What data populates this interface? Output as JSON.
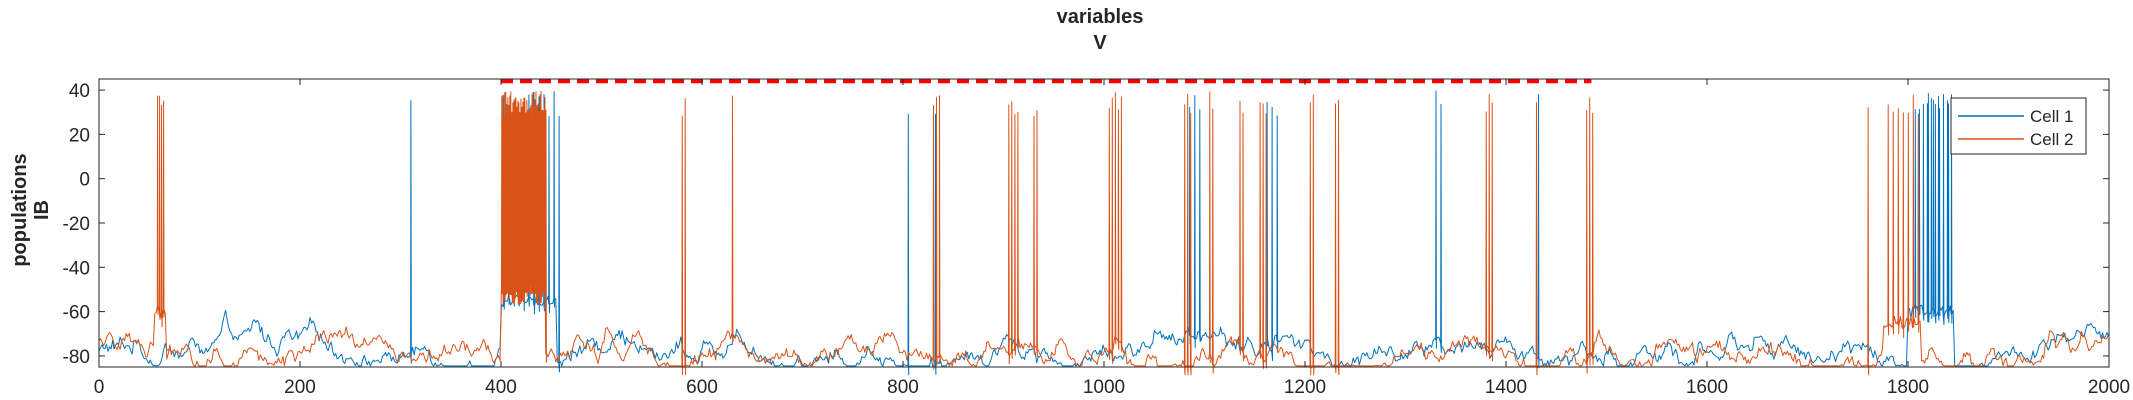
{
  "chart_data": {
    "type": "line",
    "title": [
      "variables",
      "V"
    ],
    "ylabel": [
      "populations",
      "IB"
    ],
    "xlabel": "",
    "xlim": [
      0,
      2000
    ],
    "ylim": [
      -85,
      45
    ],
    "xticks": [
      0,
      200,
      400,
      600,
      800,
      1000,
      1200,
      1400,
      1600,
      1800,
      2000
    ],
    "yticks": [
      -80,
      -60,
      -40,
      -20,
      0,
      20,
      40
    ],
    "grid": false,
    "legend": "top-right",
    "series": [
      {
        "name": "Cell 1",
        "color": "#0072BD",
        "baseline": -78,
        "spike_peak": 40,
        "spikes": [
          310,
          805,
          832,
          1085,
          1090,
          1095,
          1162,
          1167,
          1172,
          1330,
          1335,
          1432,
          1810,
          1815,
          1820,
          1825,
          1830,
          1835,
          1840
        ],
        "bursts": [
          [
            400,
            460,
            12
          ],
          [
            1805,
            1845,
            10
          ]
        ],
        "plateaus": [
          [
            400,
            455,
            -55
          ],
          [
            1800,
            1845,
            -60
          ]
        ]
      },
      {
        "name": "Cell 2",
        "color": "#D95319",
        "baseline": -79,
        "spike_peak": 40,
        "spikes": [
          58,
          60,
          62,
          64,
          580,
          583,
          630,
          830,
          833,
          836,
          905,
          908,
          911,
          914,
          930,
          933,
          1005,
          1008,
          1011,
          1014,
          1017,
          1080,
          1083,
          1086,
          1105,
          1108,
          1135,
          1138,
          1155,
          1158,
          1161,
          1205,
          1208,
          1230,
          1233,
          1380,
          1383,
          1386,
          1430,
          1480,
          1483,
          1486,
          1760,
          1780,
          1785,
          1790,
          1795,
          1800,
          1805,
          1810
        ],
        "bursts": [
          [
            400,
            445,
            45
          ]
        ],
        "plateaus": [
          [
            400,
            445,
            -50
          ],
          [
            55,
            66,
            -60
          ],
          [
            1775,
            1812,
            -65
          ]
        ]
      }
    ],
    "annotations": [
      {
        "type": "dashed-line",
        "color": "#FF0000",
        "x": [
          400,
          1485
        ],
        "y": 44
      }
    ]
  }
}
